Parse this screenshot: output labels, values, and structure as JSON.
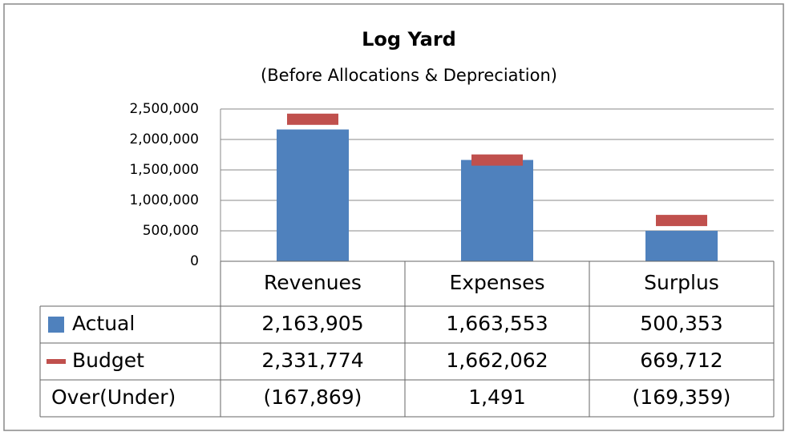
{
  "chart_data": {
    "type": "bar",
    "title": "Log Yard",
    "subtitle": "(Before Allocations & Depreciation)",
    "categories": [
      "Revenues",
      "Expenses",
      "Surplus"
    ],
    "series": [
      {
        "name": "Actual",
        "color": "#4f81bd",
        "marker": "bar",
        "values": [
          2163905,
          1663553,
          500353
        ],
        "value_labels": [
          "2,163,905",
          "1,663,553",
          "500,353"
        ]
      },
      {
        "name": "Budget",
        "color": "#c0504d",
        "marker": "dash",
        "values": [
          2331774,
          1662062,
          669712
        ],
        "value_labels": [
          "2,331,774",
          "1,662,062",
          "669,712"
        ]
      }
    ],
    "table_rows": [
      {
        "name": "Over(Under)",
        "values": [
          -167869,
          1491,
          -169359
        ],
        "value_labels": [
          "(167,869)",
          "1,491",
          "(169,359)"
        ]
      }
    ],
    "ylim": [
      0,
      2500000
    ],
    "yticks": [
      0,
      {
        "value": 500000,
        "label": "500,000"
      },
      {
        "value": 1000000,
        "label": "1,000,000"
      },
      {
        "value": 1500000,
        "label": "1,500,000"
      },
      {
        "value": 2000000,
        "label": "2,000,000"
      },
      {
        "value": 2500000,
        "label": "2,500,000"
      }
    ],
    "grid": true
  }
}
